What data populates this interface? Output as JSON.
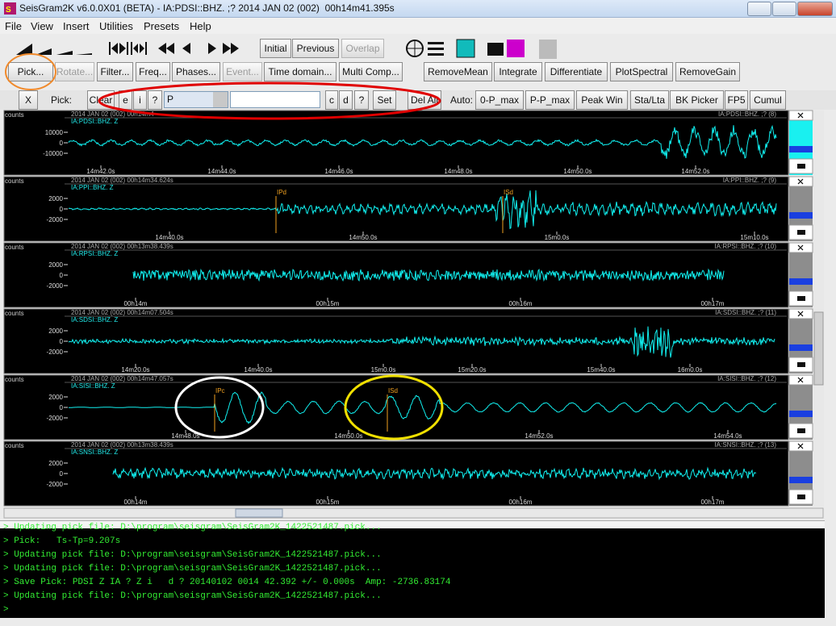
{
  "window": {
    "title": "SeisGram2K v6.0.0X01 (BETA) - IA:PDSI::BHZ. ;? 2014 JAN 02 (002)  00h14m41.395s"
  },
  "menu": [
    "File",
    "View",
    "Insert",
    "Utilities",
    "Presets",
    "Help"
  ],
  "nav_buttons": [
    {
      "label": "Initial",
      "enabled": true
    },
    {
      "label": "Previous",
      "enabled": true
    },
    {
      "label": "Overlap",
      "enabled": false
    }
  ],
  "tools": [
    {
      "label": "Pick...",
      "enabled": true
    },
    {
      "label": "Rotate...",
      "enabled": false
    },
    {
      "label": "Filter...",
      "enabled": true
    },
    {
      "label": "Freq...",
      "enabled": true
    },
    {
      "label": "Phases...",
      "enabled": true
    },
    {
      "label": "Event...",
      "enabled": false
    },
    {
      "label": "Time domain...",
      "enabled": true
    },
    {
      "label": "Multi Comp...",
      "enabled": true
    },
    {
      "label": "RemoveMean",
      "enabled": true
    },
    {
      "label": "Integrate",
      "enabled": true
    },
    {
      "label": "Differentiate",
      "enabled": true
    },
    {
      "label": "PlotSpectral",
      "enabled": true
    },
    {
      "label": "RemoveGain",
      "enabled": true
    }
  ],
  "pick_bar": {
    "close": "X",
    "label": "Pick:",
    "buttons": [
      "Clear",
      "e",
      "i",
      "?"
    ],
    "phase": "P",
    "phase_buttons": [
      "c",
      "d",
      "?",
      "Set",
      "Del All"
    ],
    "auto_label": "Auto:",
    "auto_buttons": [
      "0-P_max",
      "P-P_max",
      "Peak Win",
      "Sta/Lta",
      "BK Picker",
      "FP5",
      "Cumul"
    ]
  },
  "traces": [
    {
      "unit": "counts",
      "header": "2014 JAN 02 (002) 00h14m4",
      "station": "IA:PDSI::BHZ. Z",
      "right_label": "IA:PDSI::BHZ. ;? (8)",
      "yticks": [
        "10000",
        "0",
        "-10000"
      ],
      "xticks": [
        "14m42.0s",
        "14m44.0s",
        "14m46.0s",
        "14m48.0s",
        "14m50.0s",
        "14m52.0s"
      ],
      "picks": []
    },
    {
      "unit": "counts",
      "header": "2014 JAN 02 (002) 00h14m34.624s",
      "station": "IA:PPI::BHZ. Z",
      "right_label": "IA:PPI::BHZ. ;? (9)",
      "yticks": [
        "2000",
        "0",
        "-2000"
      ],
      "xticks": [
        "14m40.0s",
        "14m50.0s",
        "15m0.0s",
        "15m10.0s"
      ],
      "picks": [
        "IPd",
        "ISd"
      ]
    },
    {
      "unit": "counts",
      "header": "2014 JAN 02 (002) 00h13m38.439s",
      "station": "IA:RPSI::BHZ. Z",
      "right_label": "IA:RPSI::BHZ. ;? (10)",
      "yticks": [
        "2000",
        "0",
        "-2000"
      ],
      "xticks": [
        "00h14m",
        "00h15m",
        "00h16m",
        "00h17m"
      ],
      "picks": []
    },
    {
      "unit": "counts",
      "header": "2014 JAN 02 (002) 00h14m07.504s",
      "station": "IA:SDSI::BHZ. Z",
      "right_label": "IA:SDSI::BHZ. ;? (11)",
      "yticks": [
        "2000",
        "0",
        "-2000"
      ],
      "xticks": [
        "14m20.0s",
        "14m40.0s",
        "15m0.0s",
        "15m20.0s",
        "15m40.0s",
        "16m0.0s"
      ],
      "picks": []
    },
    {
      "unit": "counts",
      "header": "2014 JAN 02 (002) 00h14m47.057s",
      "station": "IA:SISI::BHZ. Z",
      "right_label": "IA:SISI::BHZ. ;? (12)",
      "yticks": [
        "2000",
        "0",
        "-2000"
      ],
      "xticks": [
        "14m48.0s",
        "14m50.0s",
        "14m52.0s",
        "14m54.0s"
      ],
      "picks": [
        "IPc",
        "ISd"
      ]
    },
    {
      "unit": "counts",
      "header": "2014 JAN 02 (002) 00h13m38.439s",
      "station": "IA:SNSI::BHZ. Z",
      "right_label": "IA:SNSI::BHZ. ;? (13)",
      "yticks": [
        "2000",
        "0",
        "-2000"
      ],
      "xticks": [
        "00h14m",
        "00h15m",
        "00h16m",
        "00h17m"
      ],
      "picks": []
    }
  ],
  "console": [
    "> Updating pick file: D:\\program\\seisgram\\SeisGram2K_1422521487.pick...",
    "> Pick:   Ts-Tp=9.207s",
    "> Updating pick file: D:\\program\\seisgram\\SeisGram2K_1422521487.pick...",
    "> Updating pick file: D:\\program\\seisgram\\SeisGram2K_1422521487.pick...",
    "> Save Pick: PDSI Z IA ? Z i   d ? 20140102 0014 42.392 +/- 0.000s  Amp: -2736.83174",
    "> Updating pick file: D:\\program\\seisgram\\SeisGram2K_1422521487.pick...",
    ">"
  ]
}
